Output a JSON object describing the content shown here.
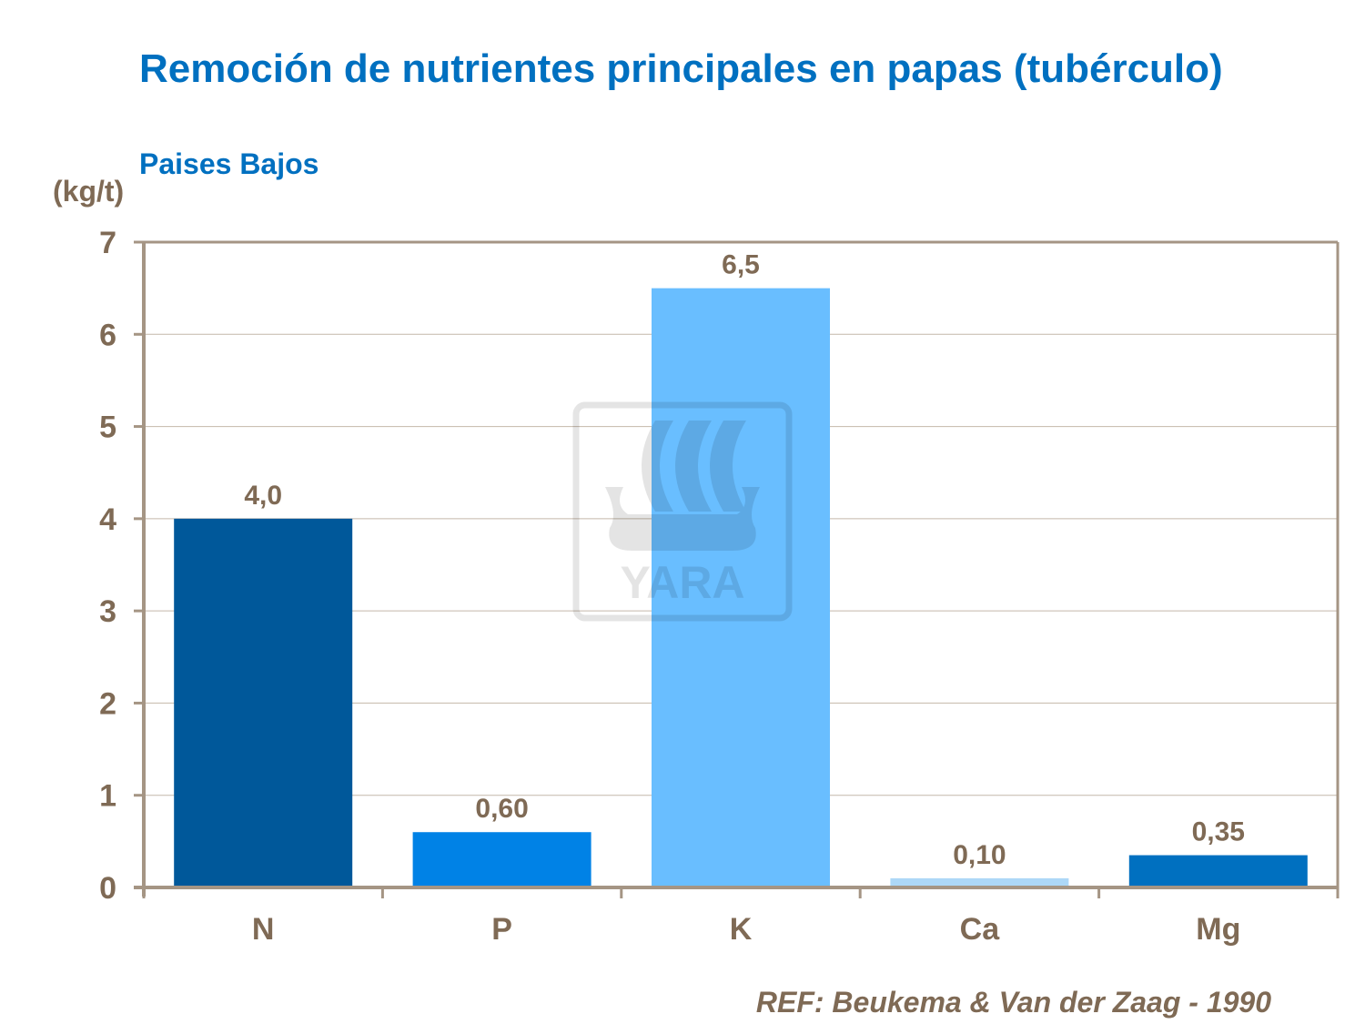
{
  "chart_data": {
    "type": "bar",
    "title": "Remoción de nutrientes principales en papas (tubérculo)",
    "subtitle": "Paises Bajos",
    "ylabel": "(kg/t)",
    "xlabel": "",
    "categories": [
      "N",
      "P",
      "K",
      "Ca",
      "Mg"
    ],
    "values": [
      4.0,
      0.6,
      6.5,
      0.1,
      0.35
    ],
    "data_labels": [
      "4,0",
      "0,60",
      "6,5",
      "0,10",
      "0,35"
    ],
    "bar_colors": [
      "#00589A",
      "#0082E6",
      "#69BEFF",
      "#ADD8F7",
      "#0070C0"
    ],
    "ylim": [
      0,
      7
    ],
    "yticks": [
      0,
      1,
      2,
      3,
      4,
      5,
      6,
      7
    ],
    "grid": true,
    "legend": "none",
    "source": "REF: Beukema & Van der Zaag - 1990",
    "watermark": "YARA"
  },
  "colors": {
    "title": "#0070C0",
    "text": "#7F6A55",
    "axis": "#A59584",
    "grid": "#C4B8AA"
  }
}
